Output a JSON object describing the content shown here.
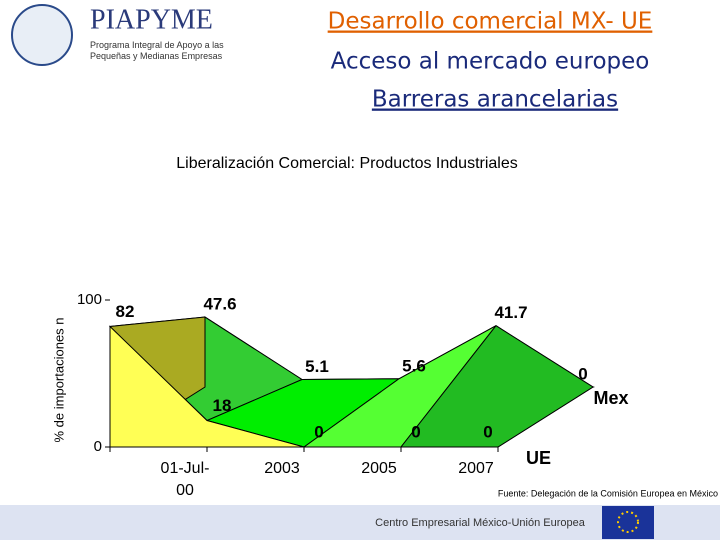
{
  "header": {
    "logo": "PIAPYME",
    "logo_sub": "Programa Integral de Apoyo a las Pequeñas y Medianas Empresas",
    "title1": "Desarrollo comercial MX- UE",
    "title2": "Acceso al mercado europeo",
    "title3": "Barreras arancelarias"
  },
  "chart_data": {
    "type": "area3d",
    "title": "Liberalización Comercial: Productos Industriales",
    "y_label": "% de importaciones n",
    "categories": [
      "01-Jul-00",
      "2003",
      "2005",
      "2007",
      null
    ],
    "series": [
      {
        "name": "UE",
        "color": "#ffff55",
        "values": [
          82,
          18,
          0,
          0,
          0
        ]
      },
      {
        "name": "Mex",
        "color": "#22bb22",
        "values": [
          47.6,
          5.1,
          5.6,
          41.7,
          0
        ]
      }
    ],
    "ylim": [
      0,
      100
    ],
    "yticks": [
      0,
      100
    ]
  },
  "footer": {
    "source": "Fuente: Delegación de la Comisión Europea en México",
    "center": "Centro Empresarial México-Unión Europea"
  }
}
